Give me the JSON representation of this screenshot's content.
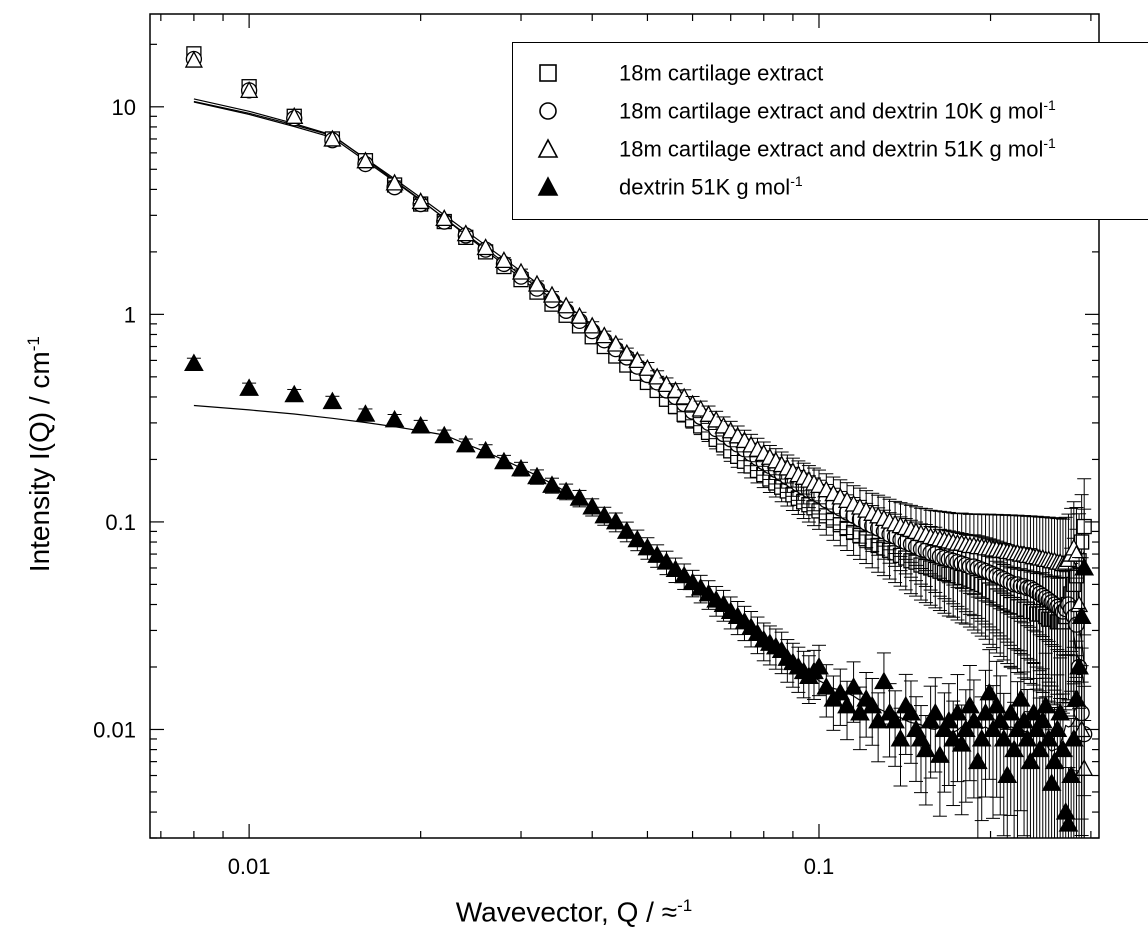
{
  "chart_data": {
    "type": "scatter",
    "title": "",
    "xlabel": "Wavevector, Q / ≈",
    "xlabel_sup": "-1",
    "ylabel": "Intensity  I(Q) / cm",
    "ylabel_sup": "-1",
    "x_scale": "log",
    "y_scale": "log",
    "xlim": [
      0.0067,
      0.31
    ],
    "ylim": [
      0.003,
      28
    ],
    "x_ticks": [
      0.01,
      0.1
    ],
    "x_tick_labels": [
      "0.01",
      "0.1"
    ],
    "y_ticks": [
      0.01,
      0.1,
      1,
      10
    ],
    "y_tick_labels": [
      "0.01",
      "0.1",
      "1",
      "10"
    ],
    "grid": false,
    "legend_position": "top-right",
    "series": [
      {
        "name": "18m cartilage extract",
        "name_sup": "",
        "marker": "open-square",
        "x": [
          0.008,
          0.01,
          0.012,
          0.014,
          0.016,
          0.018,
          0.02,
          0.022,
          0.024,
          0.026,
          0.028,
          0.03,
          0.032,
          0.034,
          0.036,
          0.038,
          0.04,
          0.042,
          0.044,
          0.046,
          0.048,
          0.05,
          0.052,
          0.054,
          0.056,
          0.058,
          0.06,
          0.062,
          0.064,
          0.066,
          0.068,
          0.07,
          0.072,
          0.074,
          0.076,
          0.078,
          0.08,
          0.082,
          0.084,
          0.086,
          0.088,
          0.09,
          0.092,
          0.094,
          0.096,
          0.098,
          0.1,
          0.103,
          0.106,
          0.109,
          0.112,
          0.115,
          0.118,
          0.121,
          0.124,
          0.127,
          0.13,
          0.133,
          0.136,
          0.139,
          0.142,
          0.145,
          0.148,
          0.151,
          0.154,
          0.157,
          0.16,
          0.163,
          0.166,
          0.169,
          0.172,
          0.175,
          0.178,
          0.181,
          0.184,
          0.187,
          0.19,
          0.193,
          0.196,
          0.199,
          0.202,
          0.205,
          0.208,
          0.211,
          0.214,
          0.217,
          0.22,
          0.223,
          0.226,
          0.229,
          0.232,
          0.235,
          0.238,
          0.241,
          0.244,
          0.247,
          0.25,
          0.253,
          0.256,
          0.259,
          0.262,
          0.265,
          0.268,
          0.271,
          0.274,
          0.277,
          0.28,
          0.283,
          0.286,
          0.289,
          0.292
        ],
        "y": [
          18.0,
          12.5,
          9.0,
          7.0,
          5.5,
          4.2,
          3.4,
          2.8,
          2.35,
          2.0,
          1.7,
          1.47,
          1.28,
          1.12,
          0.99,
          0.88,
          0.78,
          0.7,
          0.63,
          0.57,
          0.52,
          0.47,
          0.43,
          0.39,
          0.36,
          0.33,
          0.31,
          0.29,
          0.27,
          0.25,
          0.235,
          0.22,
          0.207,
          0.196,
          0.186,
          0.177,
          0.169,
          0.161,
          0.154,
          0.147,
          0.141,
          0.135,
          0.13,
          0.125,
          0.121,
          0.117,
          0.113,
          0.107,
          0.102,
          0.097,
          0.093,
          0.089,
          0.086,
          0.083,
          0.08,
          0.077,
          0.075,
          0.073,
          0.071,
          0.069,
          0.067,
          0.065,
          0.064,
          0.062,
          0.061,
          0.06,
          0.059,
          0.058,
          0.057,
          0.056,
          0.056,
          0.055,
          0.054,
          0.054,
          0.053,
          0.052,
          0.051,
          0.05,
          0.049,
          0.047,
          0.046,
          0.044,
          0.043,
          0.042,
          0.041,
          0.04,
          0.04,
          0.039,
          0.039,
          0.038,
          0.038,
          0.037,
          0.037,
          0.036,
          0.036,
          0.036,
          0.035,
          0.034,
          0.034,
          0.034,
          0.033,
          0.033,
          0.033,
          0.035,
          0.04,
          0.045,
          0.05,
          0.055,
          0.065,
          0.08,
          0.095
        ]
      },
      {
        "name": "18m cartilage extract and dextrin 10K g mol",
        "name_sup": "-1",
        "marker": "open-circle",
        "x": [
          0.008,
          0.01,
          0.012,
          0.014,
          0.016,
          0.018,
          0.02,
          0.022,
          0.024,
          0.026,
          0.028,
          0.03,
          0.032,
          0.034,
          0.036,
          0.038,
          0.04,
          0.042,
          0.044,
          0.046,
          0.048,
          0.05,
          0.052,
          0.054,
          0.056,
          0.058,
          0.06,
          0.062,
          0.064,
          0.066,
          0.068,
          0.07,
          0.072,
          0.074,
          0.076,
          0.078,
          0.08,
          0.082,
          0.084,
          0.086,
          0.088,
          0.09,
          0.092,
          0.094,
          0.096,
          0.098,
          0.1,
          0.103,
          0.106,
          0.109,
          0.112,
          0.115,
          0.118,
          0.121,
          0.124,
          0.127,
          0.13,
          0.133,
          0.136,
          0.139,
          0.142,
          0.145,
          0.148,
          0.151,
          0.154,
          0.157,
          0.16,
          0.163,
          0.166,
          0.169,
          0.172,
          0.175,
          0.178,
          0.181,
          0.184,
          0.187,
          0.19,
          0.193,
          0.196,
          0.199,
          0.202,
          0.205,
          0.208,
          0.211,
          0.214,
          0.217,
          0.22,
          0.223,
          0.226,
          0.229,
          0.232,
          0.235,
          0.238,
          0.241,
          0.244,
          0.247,
          0.25,
          0.253,
          0.256,
          0.259,
          0.262,
          0.265,
          0.268,
          0.271,
          0.274,
          0.277,
          0.28,
          0.283,
          0.286,
          0.289,
          0.292
        ],
        "y": [
          17.0,
          12.0,
          8.8,
          6.9,
          5.3,
          4.1,
          3.4,
          2.8,
          2.4,
          2.05,
          1.75,
          1.52,
          1.33,
          1.17,
          1.04,
          0.93,
          0.83,
          0.75,
          0.68,
          0.62,
          0.56,
          0.51,
          0.47,
          0.43,
          0.4,
          0.37,
          0.34,
          0.32,
          0.3,
          0.28,
          0.265,
          0.25,
          0.236,
          0.224,
          0.213,
          0.203,
          0.194,
          0.186,
          0.178,
          0.171,
          0.164,
          0.158,
          0.152,
          0.147,
          0.142,
          0.138,
          0.134,
          0.127,
          0.121,
          0.116,
          0.111,
          0.107,
          0.103,
          0.099,
          0.096,
          0.093,
          0.09,
          0.087,
          0.085,
          0.082,
          0.08,
          0.078,
          0.076,
          0.074,
          0.073,
          0.071,
          0.07,
          0.068,
          0.067,
          0.066,
          0.065,
          0.064,
          0.063,
          0.062,
          0.061,
          0.061,
          0.06,
          0.059,
          0.058,
          0.057,
          0.056,
          0.055,
          0.054,
          0.053,
          0.052,
          0.051,
          0.05,
          0.05,
          0.049,
          0.049,
          0.048,
          0.048,
          0.047,
          0.046,
          0.045,
          0.044,
          0.043,
          0.042,
          0.041,
          0.04,
          0.039,
          0.038,
          0.037,
          0.038,
          0.04,
          0.038,
          0.035,
          0.032,
          0.02,
          0.012,
          0.0095
        ]
      },
      {
        "name": "18m cartilage extract and dextrin 51K g mol",
        "name_sup": "-1",
        "marker": "open-triangle",
        "x": [
          0.008,
          0.01,
          0.012,
          0.014,
          0.016,
          0.018,
          0.02,
          0.022,
          0.024,
          0.026,
          0.028,
          0.03,
          0.032,
          0.034,
          0.036,
          0.038,
          0.04,
          0.042,
          0.044,
          0.046,
          0.048,
          0.05,
          0.052,
          0.054,
          0.056,
          0.058,
          0.06,
          0.062,
          0.064,
          0.066,
          0.068,
          0.07,
          0.072,
          0.074,
          0.076,
          0.078,
          0.08,
          0.082,
          0.084,
          0.086,
          0.088,
          0.09,
          0.092,
          0.094,
          0.096,
          0.098,
          0.1,
          0.103,
          0.106,
          0.109,
          0.112,
          0.115,
          0.118,
          0.121,
          0.124,
          0.127,
          0.13,
          0.133,
          0.136,
          0.139,
          0.142,
          0.145,
          0.148,
          0.151,
          0.154,
          0.157,
          0.16,
          0.163,
          0.166,
          0.169,
          0.172,
          0.175,
          0.178,
          0.181,
          0.184,
          0.187,
          0.19,
          0.193,
          0.196,
          0.199,
          0.202,
          0.205,
          0.208,
          0.211,
          0.214,
          0.217,
          0.22,
          0.223,
          0.226,
          0.229,
          0.232,
          0.235,
          0.238,
          0.241,
          0.244,
          0.247,
          0.25,
          0.253,
          0.256,
          0.259,
          0.262,
          0.265,
          0.268,
          0.271,
          0.274,
          0.277,
          0.28,
          0.283,
          0.286,
          0.289,
          0.292
        ],
        "y": [
          16.8,
          12.0,
          9.0,
          7.0,
          5.5,
          4.3,
          3.5,
          2.9,
          2.45,
          2.1,
          1.82,
          1.6,
          1.4,
          1.24,
          1.1,
          0.98,
          0.88,
          0.79,
          0.72,
          0.65,
          0.6,
          0.55,
          0.5,
          0.46,
          0.43,
          0.4,
          0.37,
          0.35,
          0.33,
          0.31,
          0.29,
          0.275,
          0.26,
          0.247,
          0.235,
          0.224,
          0.214,
          0.205,
          0.197,
          0.189,
          0.182,
          0.175,
          0.169,
          0.164,
          0.159,
          0.154,
          0.15,
          0.143,
          0.137,
          0.132,
          0.127,
          0.122,
          0.118,
          0.114,
          0.11,
          0.107,
          0.104,
          0.101,
          0.098,
          0.096,
          0.094,
          0.092,
          0.09,
          0.088,
          0.087,
          0.085,
          0.084,
          0.083,
          0.082,
          0.081,
          0.08,
          0.079,
          0.079,
          0.078,
          0.077,
          0.077,
          0.076,
          0.076,
          0.075,
          0.075,
          0.074,
          0.074,
          0.073,
          0.073,
          0.072,
          0.072,
          0.071,
          0.071,
          0.07,
          0.07,
          0.069,
          0.069,
          0.068,
          0.068,
          0.067,
          0.067,
          0.066,
          0.066,
          0.065,
          0.065,
          0.064,
          0.064,
          0.063,
          0.064,
          0.066,
          0.07,
          0.075,
          0.07,
          0.04,
          0.01,
          0.0065
        ]
      },
      {
        "name": "dextrin 51K g mol",
        "name_sup": "-1",
        "marker": "filled-triangle",
        "x": [
          0.008,
          0.01,
          0.012,
          0.014,
          0.016,
          0.018,
          0.02,
          0.022,
          0.024,
          0.026,
          0.028,
          0.03,
          0.032,
          0.034,
          0.036,
          0.038,
          0.04,
          0.042,
          0.044,
          0.046,
          0.048,
          0.05,
          0.052,
          0.054,
          0.056,
          0.058,
          0.06,
          0.062,
          0.064,
          0.066,
          0.068,
          0.07,
          0.072,
          0.074,
          0.076,
          0.078,
          0.08,
          0.082,
          0.084,
          0.086,
          0.088,
          0.09,
          0.092,
          0.094,
          0.096,
          0.098,
          0.1,
          0.103,
          0.106,
          0.109,
          0.112,
          0.115,
          0.118,
          0.121,
          0.124,
          0.127,
          0.13,
          0.133,
          0.136,
          0.139,
          0.142,
          0.145,
          0.148,
          0.151,
          0.154,
          0.157,
          0.16,
          0.163,
          0.166,
          0.169,
          0.172,
          0.175,
          0.178,
          0.181,
          0.184,
          0.187,
          0.19,
          0.193,
          0.196,
          0.199,
          0.202,
          0.205,
          0.208,
          0.211,
          0.214,
          0.217,
          0.22,
          0.223,
          0.226,
          0.229,
          0.232,
          0.235,
          0.238,
          0.241,
          0.244,
          0.247,
          0.25,
          0.253,
          0.256,
          0.259,
          0.262,
          0.265,
          0.268,
          0.271,
          0.274,
          0.277,
          0.28,
          0.283,
          0.286,
          0.289,
          0.292
        ],
        "y": [
          0.58,
          0.44,
          0.41,
          0.38,
          0.33,
          0.31,
          0.29,
          0.26,
          0.235,
          0.22,
          0.195,
          0.18,
          0.165,
          0.15,
          0.14,
          0.13,
          0.118,
          0.107,
          0.1,
          0.09,
          0.082,
          0.075,
          0.069,
          0.064,
          0.059,
          0.055,
          0.051,
          0.048,
          0.045,
          0.042,
          0.04,
          0.037,
          0.035,
          0.033,
          0.031,
          0.029,
          0.027,
          0.026,
          0.025,
          0.024,
          0.022,
          0.021,
          0.02,
          0.019,
          0.018,
          0.019,
          0.02,
          0.016,
          0.014,
          0.015,
          0.013,
          0.016,
          0.012,
          0.014,
          0.013,
          0.011,
          0.017,
          0.012,
          0.011,
          0.009,
          0.013,
          0.012,
          0.01,
          0.009,
          0.008,
          0.011,
          0.012,
          0.0075,
          0.01,
          0.011,
          0.009,
          0.012,
          0.0085,
          0.01,
          0.013,
          0.011,
          0.007,
          0.009,
          0.012,
          0.015,
          0.01,
          0.013,
          0.011,
          0.009,
          0.006,
          0.012,
          0.008,
          0.01,
          0.014,
          0.011,
          0.009,
          0.007,
          0.012,
          0.01,
          0.008,
          0.011,
          0.013,
          0.009,
          0.0055,
          0.007,
          0.01,
          0.012,
          0.008,
          0.004,
          0.0035,
          0.006,
          0.009,
          0.014,
          0.02,
          0.035,
          0.06
        ]
      }
    ]
  }
}
